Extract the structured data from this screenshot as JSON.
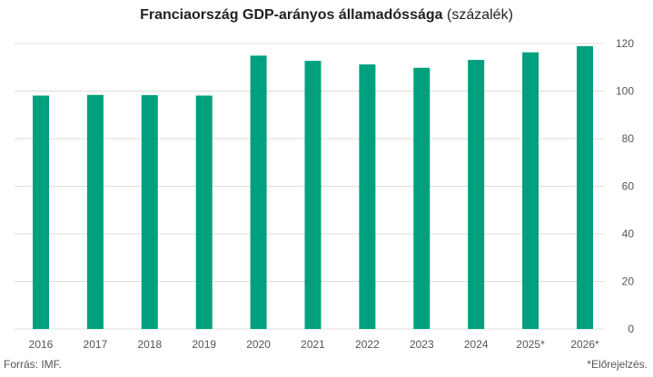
{
  "chart_data": {
    "type": "bar",
    "title": "Franciaország GDP-arányos államadóssága",
    "subtitle": "(százalék)",
    "categories": [
      "2016",
      "2017",
      "2018",
      "2019",
      "2020",
      "2021",
      "2022",
      "2023",
      "2024",
      "2025*",
      "2026*"
    ],
    "series": [
      {
        "values": [
          98.1,
          98.4,
          98.3,
          98.1,
          114.9,
          112.7,
          111.2,
          109.8,
          113.1,
          116.3,
          118.9
        ]
      }
    ],
    "y_ticks": [
      "0",
      "20",
      "40",
      "60",
      "80",
      "100",
      "120"
    ],
    "ylim": [
      0,
      120
    ],
    "y_axis_side": "right",
    "grid": true,
    "colors": {
      "bar": "#00a07e",
      "grid": "#dcdcdc"
    }
  },
  "footer": {
    "source": "Forrás: IMF.",
    "note": "*Előrejelzés."
  }
}
